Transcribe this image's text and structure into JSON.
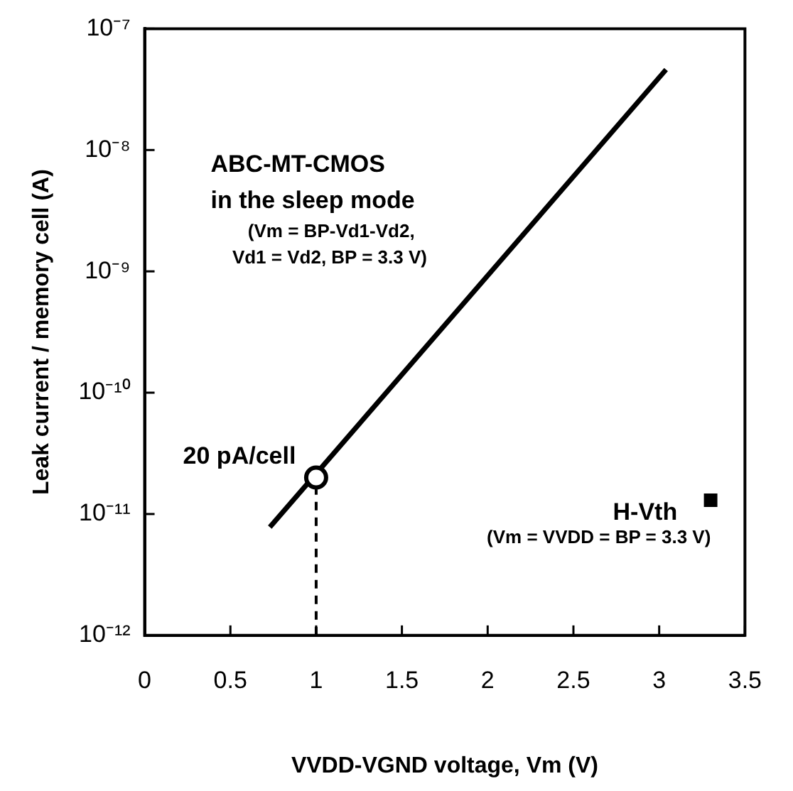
{
  "chart_data": {
    "type": "line",
    "xlabel": "VVDD-VGND voltage, Vm (V)",
    "ylabel": "Leak current / memory cell (A)",
    "log": "y",
    "xlim": [
      0,
      3.5
    ],
    "xticks": [
      0,
      0.5,
      1,
      1.5,
      2,
      2.5,
      3,
      3.5
    ],
    "ylim": [
      1e-12,
      1e-07
    ],
    "yticks": [
      {
        "value": 1e-12,
        "label": "10⁻¹²"
      },
      {
        "value": 1e-11,
        "label": "10⁻¹¹"
      },
      {
        "value": 1e-10,
        "label": "10⁻¹⁰"
      },
      {
        "value": 1e-09,
        "label": "10⁻⁹"
      },
      {
        "value": 1e-08,
        "label": "10⁻⁸"
      },
      {
        "value": 1e-07,
        "label": "10⁻⁷"
      }
    ],
    "series": [
      {
        "color": "#000000",
        "x": [
          0.73,
          3.04
        ],
        "values": [
          7.8e-12,
          4.6e-08
        ],
        "marker": "none",
        "line_style": "solid"
      },
      {
        "color": "#000000",
        "x": [
          1,
          1
        ],
        "values": [
          1e-12,
          2e-11
        ],
        "marker": "none",
        "line_style": "dashed"
      },
      {
        "type": "scatter",
        "color": "#000000",
        "x": [
          1
        ],
        "values": [
          2e-11
        ],
        "marker": "circle"
      },
      {
        "type": "scatter",
        "color": "#000000",
        "x": [
          3.3
        ],
        "values": [
          1.3e-11
        ],
        "marker": "square"
      }
    ],
    "annotations": [
      "ABC-MT-CMOS",
      "in the sleep mode",
      "(Vm = BP-Vd1-Vd2,",
      "Vd1 = Vd2, BP = 3.3 V)",
      "20 pA/cell",
      "H-Vth",
      "(Vm = VVDD = BP = 3.3 V)"
    ]
  }
}
